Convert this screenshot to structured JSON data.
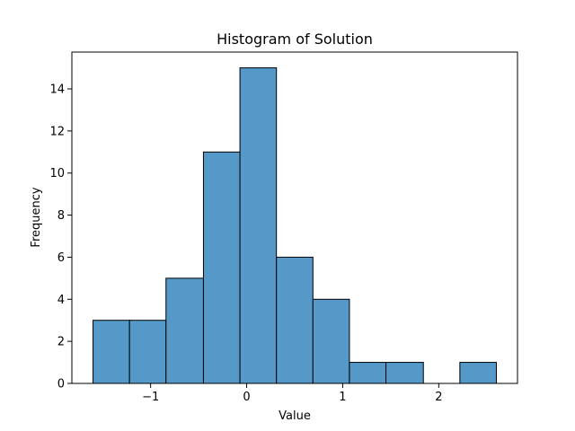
{
  "chart_data": {
    "type": "bar",
    "subtype": "histogram",
    "title": "Histogram of Solution",
    "xlabel": "Value",
    "ylabel": "Frequency",
    "bins": [
      {
        "start": -1.6,
        "end": -1.22,
        "count": 3
      },
      {
        "start": -1.22,
        "end": -0.84,
        "count": 3
      },
      {
        "start": -0.84,
        "end": -0.45,
        "count": 5
      },
      {
        "start": -0.45,
        "end": -0.07,
        "count": 11
      },
      {
        "start": -0.07,
        "end": 0.31,
        "count": 15
      },
      {
        "start": 0.31,
        "end": 0.69,
        "count": 6
      },
      {
        "start": 0.69,
        "end": 1.07,
        "count": 4
      },
      {
        "start": 1.07,
        "end": 1.45,
        "count": 1
      },
      {
        "start": 1.45,
        "end": 1.84,
        "count": 1
      },
      {
        "start": 1.84,
        "end": 2.22,
        "count": 0
      },
      {
        "start": 2.22,
        "end": 2.6,
        "count": 1
      }
    ],
    "xlim": [
      -1.82,
      2.82
    ],
    "ylim": [
      0,
      15.75
    ],
    "xticks": [
      {
        "value": -1,
        "label": "−1"
      },
      {
        "value": 0,
        "label": "0"
      },
      {
        "value": 1,
        "label": "1"
      },
      {
        "value": 2,
        "label": "2"
      }
    ],
    "yticks": [
      {
        "value": 0,
        "label": "0"
      },
      {
        "value": 2,
        "label": "2"
      },
      {
        "value": 4,
        "label": "4"
      },
      {
        "value": 6,
        "label": "6"
      },
      {
        "value": 8,
        "label": "8"
      },
      {
        "value": 10,
        "label": "10"
      },
      {
        "value": 12,
        "label": "12"
      },
      {
        "value": 14,
        "label": "14"
      }
    ],
    "grid": false,
    "colors": {
      "bar_fill": "#5499c7",
      "bar_edge": "#000000",
      "axis": "#000000"
    }
  }
}
